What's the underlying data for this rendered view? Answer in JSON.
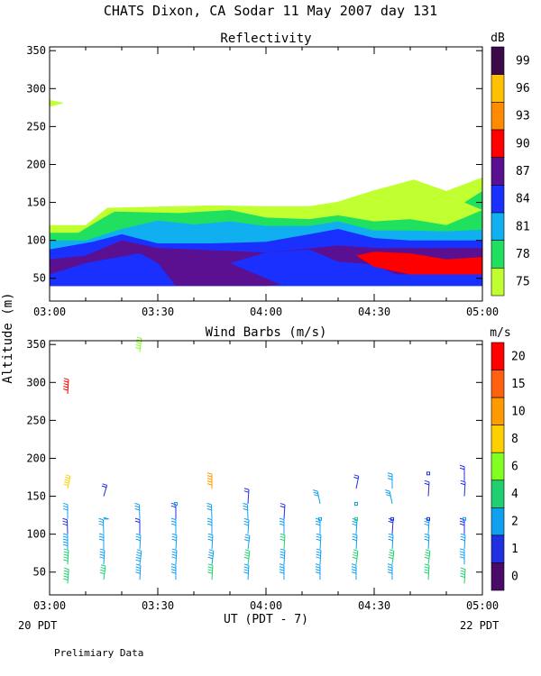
{
  "title": "CHATS Dixon, CA  Sodar  11 May 2007  day 131",
  "ylabel": "Altitude (m)",
  "xlabel": "UT  (PDT - 7)",
  "date_left": "20 PDT",
  "date_right": "22 PDT",
  "note": "Prelimiary Data",
  "chart_data": [
    {
      "type": "heatmap",
      "title": "Reflectivity",
      "xlabel": "UT  (PDT - 7)",
      "ylabel": "Altitude (m)",
      "x_ticks": [
        "03:00",
        "03:30",
        "04:00",
        "04:30",
        "05:00"
      ],
      "x_tick_values": [
        0,
        30,
        60,
        90,
        120
      ],
      "xlim": [
        0,
        120
      ],
      "y_ticks": [
        50,
        100,
        150,
        200,
        250,
        300,
        350
      ],
      "ylim": [
        20,
        355
      ],
      "colorbar": {
        "unit": "dB",
        "labels": [
          "99",
          "96",
          "93",
          "90",
          "87",
          "84",
          "81",
          "78",
          "75"
        ],
        "colors": [
          "#3c0a48",
          "#ffc000",
          "#ff8c00",
          "#ff0000",
          "#5a1090",
          "#1a30ff",
          "#10b0f0",
          "#20e060",
          "#c0ff30"
        ]
      },
      "layers": [
        {
          "level": 75,
          "color": "#c0ff30",
          "points": [
            [
              0,
              120
            ],
            [
              10,
              120
            ],
            [
              16,
              143
            ],
            [
              45,
              146
            ],
            [
              60,
              145
            ],
            [
              72,
              145
            ],
            [
              80,
              151
            ],
            [
              90,
              166
            ],
            [
              101,
              180
            ],
            [
              110,
              165
            ],
            [
              120,
              183
            ],
            [
              120,
              40
            ],
            [
              0,
              40
            ]
          ]
        },
        {
          "level": 78,
          "color": "#20e060",
          "points": [
            [
              0,
              110
            ],
            [
              8,
              110
            ],
            [
              15,
              130
            ],
            [
              18,
              138
            ],
            [
              36,
              136
            ],
            [
              50,
              140
            ],
            [
              60,
              130
            ],
            [
              72,
              128
            ],
            [
              80,
              133
            ],
            [
              90,
              125
            ],
            [
              100,
              128
            ],
            [
              110,
              120
            ],
            [
              120,
              140
            ],
            [
              120,
              40
            ],
            [
              0,
              40
            ]
          ]
        },
        {
          "level": 81,
          "color": "#10b0f0",
          "points": [
            [
              0,
              100
            ],
            [
              10,
              100
            ],
            [
              20,
              115
            ],
            [
              30,
              126
            ],
            [
              40,
              121
            ],
            [
              50,
              125
            ],
            [
              60,
              119
            ],
            [
              72,
              119
            ],
            [
              80,
              125
            ],
            [
              90,
              113
            ],
            [
              100,
              113
            ],
            [
              110,
              112
            ],
            [
              120,
              114
            ],
            [
              120,
              40
            ],
            [
              0,
              40
            ]
          ]
        },
        {
          "level": 84,
          "color": "#1a30ff",
          "points": [
            [
              0,
              88
            ],
            [
              12,
              98
            ],
            [
              20,
              108
            ],
            [
              30,
              96
            ],
            [
              45,
              96
            ],
            [
              60,
              98
            ],
            [
              72,
              108
            ],
            [
              80,
              115
            ],
            [
              90,
              103
            ],
            [
              100,
              100
            ],
            [
              120,
              100
            ],
            [
              120,
              40
            ],
            [
              0,
              40
            ]
          ]
        },
        {
          "level": 87,
          "color": "#5a1090",
          "points": [
            [
              0,
              75
            ],
            [
              10,
              80
            ],
            [
              20,
              100
            ],
            [
              30,
              90
            ],
            [
              45,
              87
            ],
            [
              60,
              84
            ],
            [
              80,
              93
            ],
            [
              90,
              90
            ],
            [
              100,
              90
            ],
            [
              120,
              90
            ],
            [
              120,
              58
            ],
            [
              96,
              55
            ],
            [
              90,
              52
            ],
            [
              80,
              47
            ],
            [
              65,
              42
            ],
            [
              60,
              40
            ],
            [
              0,
              40
            ]
          ]
        },
        {
          "level": 84,
          "color": "#1a30ff",
          "points": [
            [
              0,
              40
            ],
            [
              0,
              55
            ],
            [
              10,
              70
            ],
            [
              25,
              83
            ],
            [
              30,
              70
            ],
            [
              35,
              40
            ]
          ]
        },
        {
          "level": 84,
          "color": "#1a30ff",
          "points": [
            [
              50,
              70
            ],
            [
              60,
              84
            ],
            [
              72,
              88
            ],
            [
              80,
              72
            ],
            [
              90,
              68
            ],
            [
              96,
              55
            ],
            [
              85,
              45
            ],
            [
              65,
              40
            ]
          ]
        },
        {
          "level": 90,
          "color": "#ff0000",
          "points": [
            [
              85,
              80
            ],
            [
              90,
              85
            ],
            [
              100,
              83
            ],
            [
              110,
              75
            ],
            [
              120,
              78
            ],
            [
              120,
              55
            ],
            [
              100,
              55
            ],
            [
              90,
              65
            ]
          ]
        },
        {
          "level": 78,
          "color": "#20e060",
          "points": [
            [
              115,
              150
            ],
            [
              120,
              165
            ],
            [
              120,
              140
            ]
          ]
        },
        {
          "level": 75,
          "color": "#c0ff30",
          "points": [
            [
              0,
              285
            ],
            [
              4,
              281
            ],
            [
              0,
              276
            ]
          ]
        }
      ]
    },
    {
      "type": "scatter",
      "title": "Wind Barbs (m/s)",
      "xlabel": "UT  (PDT - 7)",
      "ylabel": "Altitude (m)",
      "x_ticks": [
        "03:00",
        "03:30",
        "04:00",
        "04:30",
        "05:00"
      ],
      "x_tick_values": [
        0,
        30,
        60,
        90,
        120
      ],
      "xlim": [
        0,
        120
      ],
      "y_ticks": [
        50,
        100,
        150,
        200,
        250,
        300,
        350
      ],
      "ylim": [
        20,
        355
      ],
      "colorbar": {
        "unit": "m/s",
        "labels": [
          "20",
          "15",
          "10",
          "8",
          "6",
          "4",
          "2",
          "1",
          "0"
        ],
        "colors": [
          "#ff0000",
          "#ff6010",
          "#ff9a00",
          "#ffd000",
          "#80ff20",
          "#20d070",
          "#10a0f0",
          "#2030e0",
          "#4a0a6a"
        ]
      },
      "barbs": [
        [
          5,
          35,
          "#20d070",
          5,
          78
        ],
        [
          5,
          60,
          "#20d070",
          5,
          80
        ],
        [
          5,
          80,
          "#10a0f0",
          5,
          90
        ],
        [
          5,
          100,
          "#2030e0",
          3,
          95
        ],
        [
          5,
          120,
          "#10a0f0",
          3,
          90
        ],
        [
          5,
          160,
          "#ffd000",
          8,
          60
        ],
        [
          5,
          285,
          "#ff0000",
          15,
          80
        ],
        [
          15,
          40,
          "#20d070",
          4,
          70
        ],
        [
          15,
          60,
          "#10a0f0",
          4,
          80
        ],
        [
          15,
          80,
          "#10a0f0",
          3,
          90
        ],
        [
          15,
          100,
          "#10a0f0",
          3,
          95
        ],
        [
          15,
          120,
          "#10a0f0",
          2,
          0
        ],
        [
          15,
          150,
          "#2030e0",
          2,
          50
        ],
        [
          25,
          40,
          "#10a0f0",
          4,
          80
        ],
        [
          25,
          60,
          "#10a0f0",
          5,
          70
        ],
        [
          25,
          80,
          "#10a0f0",
          3,
          80
        ],
        [
          25,
          100,
          "#2030e0",
          2,
          90
        ],
        [
          25,
          120,
          "#10a0f0",
          3,
          95
        ],
        [
          25,
          340,
          "#80ff20",
          6,
          70
        ],
        [
          35,
          40,
          "#10a0f0",
          4,
          90
        ],
        [
          35,
          60,
          "#10a0f0",
          4,
          80
        ],
        [
          35,
          80,
          "#10a0f0",
          3,
          80
        ],
        [
          35,
          100,
          "#10a0f0",
          3,
          90
        ],
        [
          35,
          120,
          "#2030e0",
          2,
          90
        ],
        [
          35,
          140,
          "#10a0f0",
          0,
          0
        ],
        [
          45,
          40,
          "#20d070",
          4,
          80
        ],
        [
          45,
          60,
          "#10a0f0",
          4,
          70
        ],
        [
          45,
          80,
          "#10a0f0",
          3,
          80
        ],
        [
          45,
          100,
          "#10a0f0",
          3,
          90
        ],
        [
          45,
          120,
          "#10a0f0",
          3,
          95
        ],
        [
          45,
          160,
          "#ff9a00",
          9,
          90
        ],
        [
          55,
          40,
          "#10a0f0",
          4,
          80
        ],
        [
          55,
          60,
          "#20d070",
          4,
          70
        ],
        [
          55,
          80,
          "#10a0f0",
          3,
          70
        ],
        [
          55,
          100,
          "#10a0f0",
          3,
          80
        ],
        [
          55,
          120,
          "#10a0f0",
          3,
          95
        ],
        [
          55,
          140,
          "#2030e0",
          2,
          80
        ],
        [
          65,
          40,
          "#10a0f0",
          4,
          90
        ],
        [
          65,
          60,
          "#10a0f0",
          4,
          80
        ],
        [
          65,
          80,
          "#20d070",
          3,
          80
        ],
        [
          65,
          100,
          "#10a0f0",
          3,
          90
        ],
        [
          65,
          120,
          "#2030e0",
          2,
          80
        ],
        [
          75,
          40,
          "#10a0f0",
          4,
          90
        ],
        [
          75,
          60,
          "#10a0f0",
          4,
          80
        ],
        [
          75,
          80,
          "#10a0f0",
          3,
          80
        ],
        [
          75,
          100,
          "#10a0f0",
          3,
          90
        ],
        [
          75,
          120,
          "#10a0f0",
          0,
          0
        ],
        [
          75,
          140,
          "#10a0f0",
          3,
          120
        ],
        [
          85,
          40,
          "#10a0f0",
          4,
          90
        ],
        [
          85,
          60,
          "#20d070",
          4,
          70
        ],
        [
          85,
          80,
          "#10a0f0",
          3,
          80
        ],
        [
          85,
          100,
          "#10a0f0",
          3,
          80
        ],
        [
          85,
          120,
          "#20d070",
          0,
          0
        ],
        [
          85,
          140,
          "#10a0f0",
          0,
          0
        ],
        [
          85,
          160,
          "#2030e0",
          2,
          60
        ],
        [
          95,
          40,
          "#10a0f0",
          4,
          90
        ],
        [
          95,
          60,
          "#20d070",
          4,
          70
        ],
        [
          95,
          80,
          "#10a0f0",
          3,
          80
        ],
        [
          95,
          100,
          "#2030e0",
          2,
          80
        ],
        [
          95,
          120,
          "#2030e0",
          0,
          0
        ],
        [
          95,
          140,
          "#10a0f0",
          3,
          120
        ],
        [
          95,
          160,
          "#10a0f0",
          3,
          90
        ],
        [
          105,
          40,
          "#20d070",
          4,
          80
        ],
        [
          105,
          60,
          "#20d070",
          4,
          70
        ],
        [
          105,
          80,
          "#10a0f0",
          3,
          80
        ],
        [
          105,
          100,
          "#10a0f0",
          3,
          80
        ],
        [
          105,
          120,
          "#2030e0",
          0,
          0
        ],
        [
          105,
          150,
          "#2030e0",
          2,
          80
        ],
        [
          105,
          180,
          "#2030e0",
          0,
          0
        ],
        [
          115,
          35,
          "#20d070",
          4,
          80
        ],
        [
          115,
          60,
          "#10a0f0",
          4,
          90
        ],
        [
          115,
          80,
          "#10a0f0",
          3,
          80
        ],
        [
          115,
          100,
          "#2030e0",
          3,
          90
        ],
        [
          115,
          120,
          "#10a0f0",
          0,
          0
        ],
        [
          115,
          150,
          "#2030e0",
          2,
          80
        ],
        [
          115,
          170,
          "#2030e0",
          2,
          90
        ]
      ]
    }
  ]
}
